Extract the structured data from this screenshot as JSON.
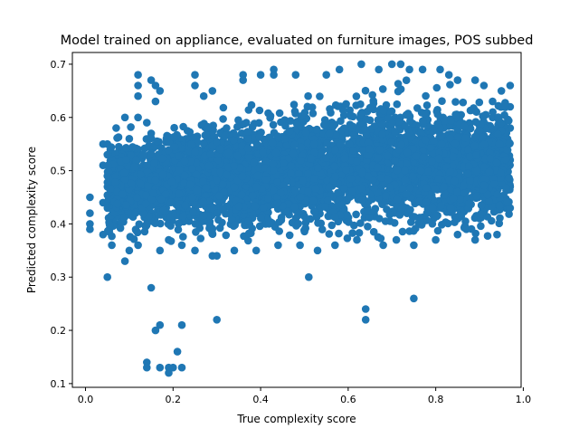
{
  "chart_data": {
    "type": "scatter",
    "title": "Model trained on appliance, evaluated on furniture images, POS subbed",
    "xlabel": "True complexity score",
    "ylabel": "Predicted complexity score",
    "xlim": [
      -0.03,
      0.995
    ],
    "ylim": [
      0.093,
      0.722
    ],
    "xticks": [
      0.0,
      0.2,
      0.4,
      0.6,
      0.8,
      1.0
    ],
    "xtick_labels": [
      "0.0",
      "0.2",
      "0.4",
      "0.6",
      "0.8",
      "1.0"
    ],
    "yticks": [
      0.1,
      0.2,
      0.3,
      0.4,
      0.5,
      0.6,
      0.7
    ],
    "ytick_labels": [
      "0.1",
      "0.2",
      "0.3",
      "0.4",
      "0.5",
      "0.6",
      "0.7"
    ],
    "grid": false,
    "marker_color": "#1f77b4",
    "dense_region": {
      "description_points": "core cloud of points",
      "x_range": [
        0.05,
        0.97
      ],
      "y_range": [
        0.35,
        0.7
      ]
    },
    "points": [
      [
        0.01,
        0.45
      ],
      [
        0.01,
        0.42
      ],
      [
        0.01,
        0.4
      ],
      [
        0.01,
        0.39
      ],
      [
        0.04,
        0.55
      ],
      [
        0.04,
        0.51
      ],
      [
        0.04,
        0.44
      ],
      [
        0.04,
        0.38
      ],
      [
        0.05,
        0.3
      ],
      [
        0.05,
        0.55
      ],
      [
        0.05,
        0.53
      ],
      [
        0.05,
        0.49
      ],
      [
        0.06,
        0.43
      ],
      [
        0.06,
        0.36
      ],
      [
        0.07,
        0.58
      ],
      [
        0.07,
        0.4
      ],
      [
        0.08,
        0.54
      ],
      [
        0.08,
        0.47
      ],
      [
        0.09,
        0.33
      ],
      [
        0.09,
        0.6
      ],
      [
        0.09,
        0.46
      ],
      [
        0.1,
        0.56
      ],
      [
        0.1,
        0.35
      ],
      [
        0.11,
        0.42
      ],
      [
        0.12,
        0.68
      ],
      [
        0.12,
        0.66
      ],
      [
        0.12,
        0.64
      ],
      [
        0.12,
        0.6
      ],
      [
        0.12,
        0.54
      ],
      [
        0.12,
        0.49
      ],
      [
        0.12,
        0.36
      ],
      [
        0.14,
        0.59
      ],
      [
        0.14,
        0.41
      ],
      [
        0.15,
        0.67
      ],
      [
        0.15,
        0.57
      ],
      [
        0.15,
        0.28
      ],
      [
        0.16,
        0.66
      ],
      [
        0.16,
        0.63
      ],
      [
        0.16,
        0.2
      ],
      [
        0.17,
        0.65
      ],
      [
        0.17,
        0.21
      ],
      [
        0.17,
        0.13
      ],
      [
        0.14,
        0.14
      ],
      [
        0.14,
        0.13
      ],
      [
        0.19,
        0.13
      ],
      [
        0.19,
        0.12
      ],
      [
        0.2,
        0.13
      ],
      [
        0.21,
        0.16
      ],
      [
        0.22,
        0.21
      ],
      [
        0.22,
        0.13
      ],
      [
        0.3,
        0.22
      ],
      [
        0.51,
        0.3
      ],
      [
        0.64,
        0.24
      ],
      [
        0.64,
        0.22
      ],
      [
        0.75,
        0.26
      ],
      [
        0.25,
        0.68
      ],
      [
        0.25,
        0.66
      ],
      [
        0.27,
        0.64
      ],
      [
        0.29,
        0.65
      ],
      [
        0.29,
        0.34
      ],
      [
        0.36,
        0.68
      ],
      [
        0.36,
        0.67
      ],
      [
        0.4,
        0.68
      ],
      [
        0.43,
        0.69
      ],
      [
        0.43,
        0.68
      ],
      [
        0.48,
        0.68
      ],
      [
        0.55,
        0.68
      ],
      [
        0.58,
        0.69
      ],
      [
        0.63,
        0.7
      ],
      [
        0.67,
        0.69
      ],
      [
        0.7,
        0.7
      ],
      [
        0.72,
        0.7
      ],
      [
        0.74,
        0.69
      ],
      [
        0.77,
        0.69
      ],
      [
        0.81,
        0.69
      ],
      [
        0.83,
        0.68
      ],
      [
        0.85,
        0.67
      ],
      [
        0.89,
        0.67
      ],
      [
        0.91,
        0.66
      ],
      [
        0.93,
        0.63
      ],
      [
        0.93,
        0.6
      ],
      [
        0.94,
        0.38
      ],
      [
        0.95,
        0.65
      ],
      [
        0.95,
        0.56
      ],
      [
        0.96,
        0.49
      ],
      [
        0.96,
        0.43
      ],
      [
        0.97,
        0.66
      ],
      [
        0.97,
        0.62
      ],
      [
        0.97,
        0.58
      ],
      [
        0.97,
        0.52
      ],
      [
        0.97,
        0.47
      ],
      [
        0.97,
        0.43
      ],
      [
        0.92,
        0.46
      ],
      [
        0.9,
        0.41
      ],
      [
        0.89,
        0.37
      ],
      [
        0.87,
        0.39
      ],
      [
        0.85,
        0.38
      ],
      [
        0.8,
        0.37
      ],
      [
        0.75,
        0.36
      ],
      [
        0.71,
        0.37
      ],
      [
        0.68,
        0.36
      ],
      [
        0.62,
        0.37
      ],
      [
        0.57,
        0.36
      ],
      [
        0.53,
        0.35
      ],
      [
        0.49,
        0.36
      ],
      [
        0.44,
        0.36
      ],
      [
        0.39,
        0.35
      ],
      [
        0.34,
        0.35
      ],
      [
        0.3,
        0.34
      ],
      [
        0.25,
        0.35
      ],
      [
        0.22,
        0.36
      ],
      [
        0.19,
        0.37
      ],
      [
        0.17,
        0.35
      ]
    ]
  }
}
